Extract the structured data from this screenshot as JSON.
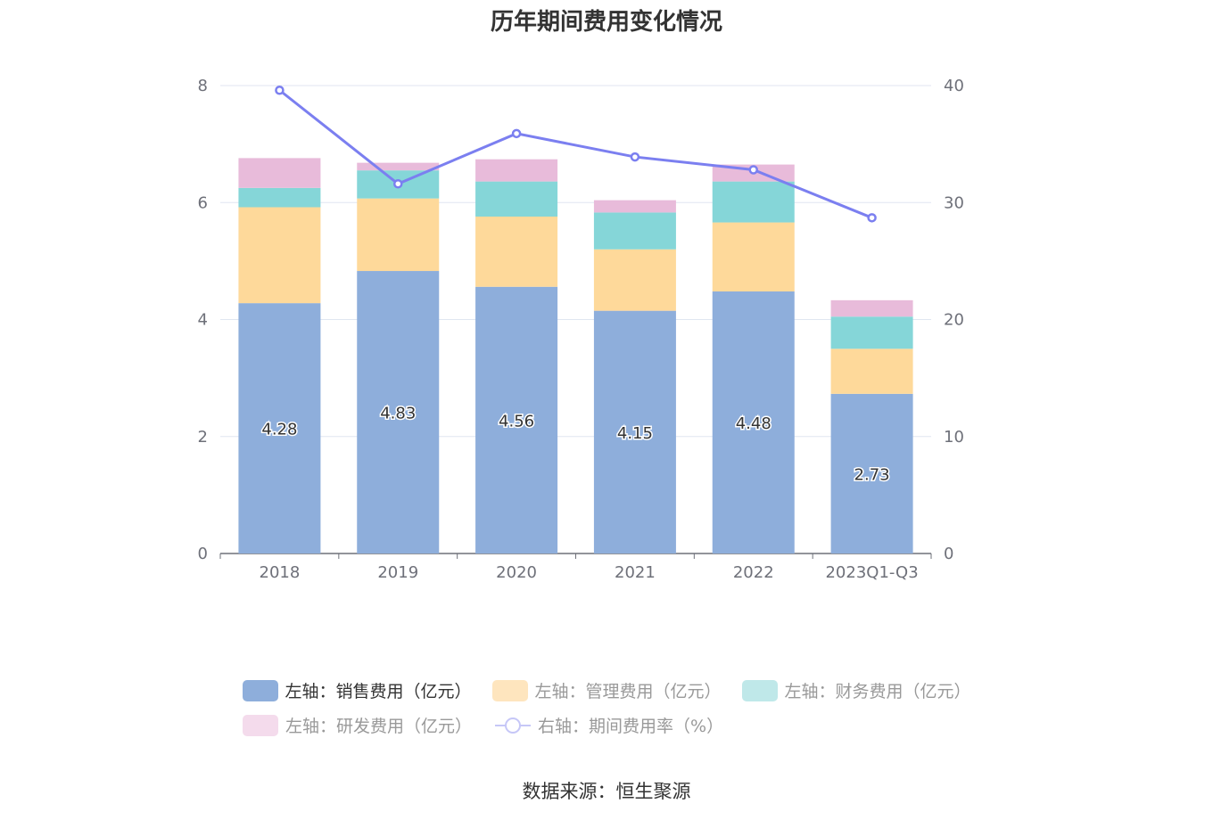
{
  "chart_data": {
    "type": "bar",
    "title": "历年期间费用变化情况",
    "categories": [
      "2018",
      "2019",
      "2020",
      "2021",
      "2022",
      "2023Q1-Q3"
    ],
    "stacked": true,
    "left_axis": {
      "ylim": [
        0,
        8
      ],
      "ticks": [
        "0",
        "2",
        "4",
        "6",
        "8"
      ]
    },
    "right_axis": {
      "ylim": [
        0,
        40
      ],
      "ticks": [
        "0",
        "10",
        "20",
        "30",
        "40"
      ]
    },
    "series": [
      {
        "name": "左轴：销售费用（亿元）",
        "type": "bar",
        "axis": "left",
        "color": "#8eaedb",
        "values": [
          4.28,
          4.83,
          4.56,
          4.15,
          4.48,
          2.73
        ],
        "labels": [
          "4.28",
          "4.83",
          "4.56",
          "4.15",
          "4.48",
          "2.73"
        ]
      },
      {
        "name": "左轴：管理费用（亿元）",
        "type": "bar",
        "axis": "left",
        "color": "#fed99a",
        "values": [
          1.64,
          1.24,
          1.2,
          1.05,
          1.18,
          0.77
        ]
      },
      {
        "name": "左轴：财务费用（亿元）",
        "type": "bar",
        "axis": "left",
        "color": "#85d6d8",
        "values": [
          0.33,
          0.48,
          0.6,
          0.63,
          0.7,
          0.55
        ]
      },
      {
        "name": "左轴：研发费用（亿元）",
        "type": "bar",
        "axis": "left",
        "color": "#e8bbda",
        "values": [
          0.51,
          0.13,
          0.38,
          0.21,
          0.29,
          0.28
        ]
      },
      {
        "name": "右轴：期间费用率（%）",
        "type": "line",
        "axis": "right",
        "color": "#7b7ff0",
        "values": [
          39.6,
          31.6,
          35.9,
          33.9,
          32.8,
          28.7
        ]
      }
    ],
    "legend_position": "bottom",
    "grid": true
  },
  "legend": {
    "row1": [
      "左轴：销售费用（亿元）",
      "左轴：管理费用（亿元）",
      "左轴：财务费用（亿元）"
    ],
    "row2": [
      "左轴：研发费用（亿元）",
      "右轴：期间费用率（%）"
    ],
    "colors": {
      "sales": "#8eaedb",
      "mgmt": "#fee5be",
      "fin": "#bfe8e9",
      "rd": "#f4dbec",
      "rate": "#c6c7f7"
    }
  },
  "source": "数据来源：恒生聚源"
}
